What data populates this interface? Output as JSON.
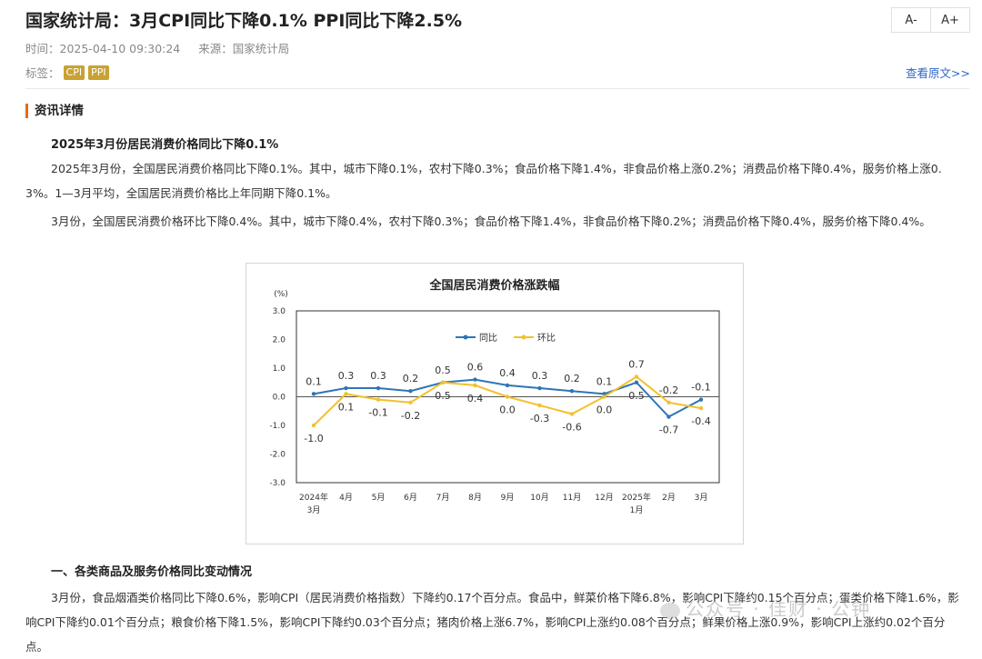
{
  "article": {
    "title": "国家统计局：3月CPI同比下降0.1% PPI同比下降2.5%",
    "time_label": "时间：2025-04-10 09:30:24",
    "source_label": "来源：国家统计局",
    "tags_label": "标签：",
    "tags": [
      "CPI",
      "PPI"
    ],
    "view_original": "查看原文>>"
  },
  "toolbar": {
    "font_decrease": "A-",
    "font_increase": "A+"
  },
  "content": {
    "section_title": "资讯详情",
    "heading1": "2025年3月份居民消费价格同比下降0.1%",
    "para1": "2025年3月份，全国居民消费价格同比下降0.1%。其中，城市下降0.1%，农村下降0.3%；食品价格下降1.4%，非食品价格上涨0.2%；消费品价格下降0.4%，服务价格上涨0.3%。1—3月平均，全国居民消费价格比上年同期下降0.1%。",
    "para2": "3月份，全国居民消费价格环比下降0.4%。其中，城市下降0.4%，农村下降0.3%；食品价格下降1.4%，非食品价格下降0.2%；消费品价格下降0.4%，服务价格下降0.4%。",
    "heading2": "一、各类商品及服务价格同比变动情况",
    "para3": "3月份，食品烟酒类价格同比下降0.6%，影响CPI（居民消费价格指数）下降约0.17个百分点。食品中，鲜菜价格下降6.8%，影响CPI下降约0.15个百分点；蛋类价格下降1.6%，影响CPI下降约0.01个百分点；粮食价格下降1.5%，影响CPI下降约0.03个百分点；猪肉价格上涨6.7%，影响CPI上涨约0.08个百分点；鲜果价格上涨0.9%，影响CPI上涨约0.02个百分点。"
  },
  "watermark": "公众号 · 佳财 · 公钟",
  "chart_data": {
    "type": "line",
    "title": "全国居民消费价格涨跌幅",
    "ylabel": "(%)",
    "ylim": [
      -3.0,
      3.0
    ],
    "yticks": [
      "3.0",
      "2.0",
      "1.0",
      "0.0",
      "-1.0",
      "-2.0",
      "-3.0"
    ],
    "categories": [
      [
        "2024年",
        "3月"
      ],
      [
        "4月"
      ],
      [
        "5月"
      ],
      [
        "6月"
      ],
      [
        "7月"
      ],
      [
        "8月"
      ],
      [
        "9月"
      ],
      [
        "10月"
      ],
      [
        "11月"
      ],
      [
        "12月"
      ],
      [
        "2025年",
        "1月"
      ],
      [
        "2月"
      ],
      [
        "3月"
      ]
    ],
    "legend_position": "top-center",
    "series": [
      {
        "name": "同比",
        "color": "#2e75b6",
        "values": [
          0.1,
          0.3,
          0.3,
          0.2,
          0.5,
          0.6,
          0.4,
          0.3,
          0.2,
          0.1,
          0.5,
          -0.7,
          -0.1
        ],
        "labels": [
          "0.1",
          "0.3",
          "0.3",
          "0.2",
          "0.5",
          "0.6",
          "0.4",
          "0.3",
          "0.2",
          "0.1",
          "0.5",
          "-0.7",
          "-0.1"
        ]
      },
      {
        "name": "环比",
        "color": "#f2c12e",
        "values": [
          -1.0,
          0.1,
          -0.1,
          -0.2,
          0.5,
          0.4,
          0.0,
          -0.3,
          -0.6,
          0.0,
          0.7,
          -0.2,
          -0.4
        ],
        "labels": [
          "-1.0",
          "0.1",
          "-0.1",
          "-0.2",
          "0.5",
          "0.4",
          "0.0",
          "-0.3",
          "-0.6",
          "0.0",
          "0.7",
          "-0.2",
          "-0.4"
        ]
      }
    ]
  }
}
